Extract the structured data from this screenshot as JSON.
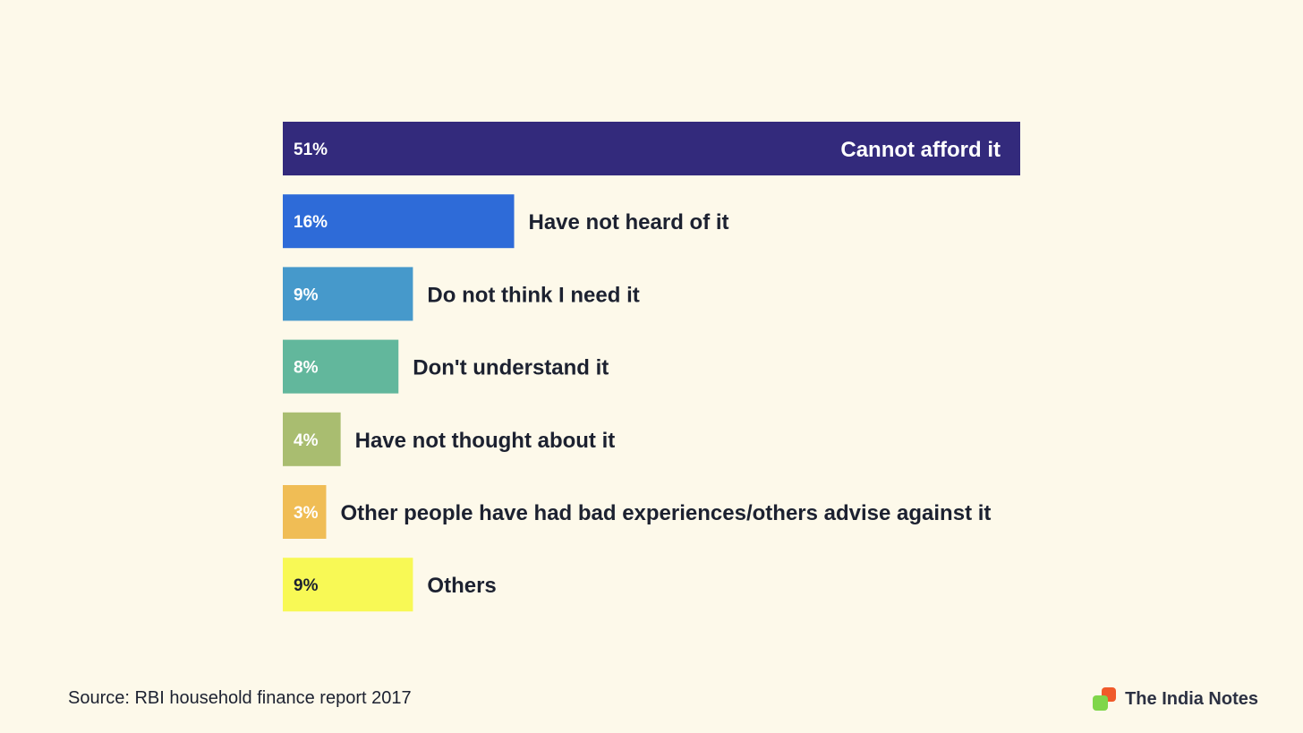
{
  "chart_data": {
    "type": "bar",
    "orientation": "horizontal",
    "categories": [
      "Cannot afford it",
      "Have not heard of it",
      "Do not think I need it",
      "Don't understand it",
      "Have not thought about it",
      "Other people have had bad experiences/others advise against it",
      "Others"
    ],
    "values": [
      51,
      16,
      9,
      8,
      4,
      3,
      9
    ],
    "value_labels": [
      "51%",
      "16%",
      "9%",
      "8%",
      "4%",
      "3%",
      "9%"
    ],
    "colors": [
      "#332a7c",
      "#2e6bd8",
      "#4699cb",
      "#62b79c",
      "#a9bd70",
      "#f0bd55",
      "#f8f955"
    ],
    "value_label_colors": [
      "#ffffff",
      "#ffffff",
      "#ffffff",
      "#ffffff",
      "#ffffff",
      "#ffffff",
      "#1c2130"
    ],
    "xlim": [
      0,
      51
    ],
    "grid": false,
    "legend": "none",
    "title": "",
    "xlabel": "",
    "ylabel": ""
  },
  "footer": {
    "source": "Source: RBI household finance report 2017",
    "brand": "The India Notes"
  }
}
